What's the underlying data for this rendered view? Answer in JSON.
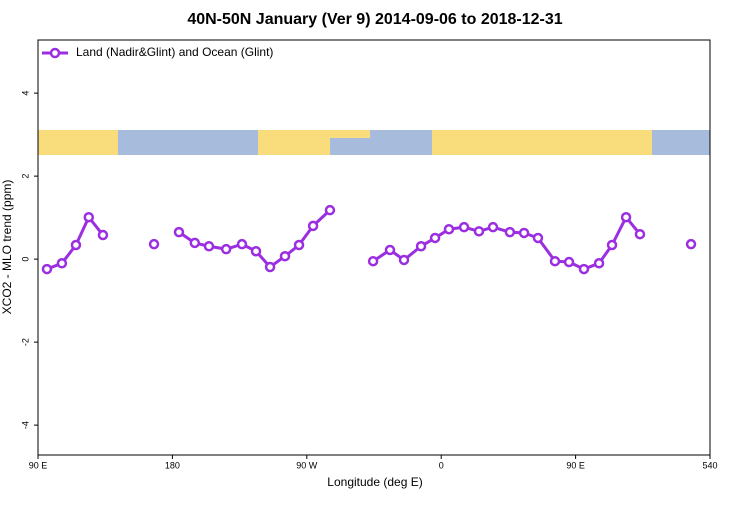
{
  "chart_data": {
    "type": "line",
    "title": "40N-50N January (Ver 9)   2014-09-06 to 2018-12-31",
    "x_label": "Longitude (deg E)",
    "y_label": "XCO2 - MLO trend (ppm)",
    "x": [
      96,
      106,
      115.4,
      124,
      133.5,
      150,
      167.7,
      176,
      184.4,
      195,
      204.5,
      216,
      226.6,
      236,
      245.4,
      255.4,
      264.8,
      274.2,
      285.5,
      300,
      314.4,
      325.7,
      335.1,
      346.5,
      355.9,
      365.2,
      375.3,
      385.3,
      394.7,
      406,
      415.5,
      424.8,
      436.2,
      445.6,
      455.6,
      465.7,
      474.4,
      483.8,
      493.1,
      510,
      527.3
    ],
    "series": [
      {
        "name": "Land (Nadir&Glint) and Ocean (Glint)",
        "color": "#9b2ee0",
        "values": [
          -0.24,
          -0.1,
          0.34,
          1.01,
          0.58,
          null,
          0.36,
          null,
          0.65,
          0.39,
          0.31,
          0.24,
          0.36,
          0.19,
          -0.19,
          0.07,
          0.34,
          0.8,
          1.18,
          null,
          -0.05,
          0.22,
          -0.02,
          0.31,
          0.51,
          0.72,
          0.77,
          0.67,
          0.77,
          0.65,
          0.63,
          0.51,
          -0.05,
          -0.07,
          -0.24,
          -0.1,
          0.34,
          1.01,
          0.6,
          null,
          0.36
        ]
      }
    ],
    "xlim": [
      90,
      540
    ],
    "xticks": [
      {
        "value": 90,
        "label": "90 E"
      },
      180,
      {
        "value": 270,
        "label": "90 W"
      },
      {
        "value": 360,
        "label": "0"
      },
      {
        "value": 450,
        "label": "90 E"
      },
      540
    ],
    "ylim": [
      -4.72,
      5.28
    ],
    "yticks": [
      -4,
      -2,
      0,
      2,
      4
    ],
    "legend": "top-left"
  }
}
